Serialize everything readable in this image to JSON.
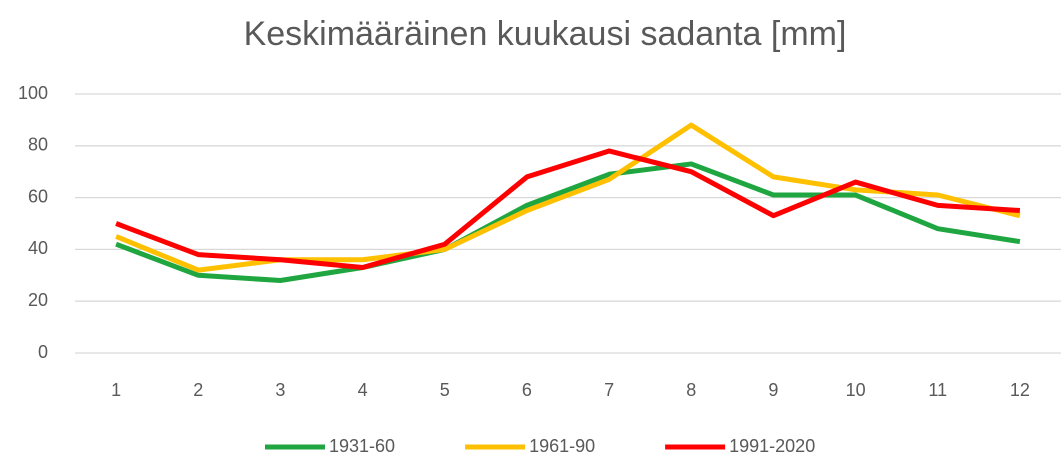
{
  "chart_data": {
    "type": "line",
    "title": "Keskimääräinen kuukausi sadanta [mm]",
    "categories": [
      1,
      2,
      3,
      4,
      5,
      6,
      7,
      8,
      9,
      10,
      11,
      12
    ],
    "series": [
      {
        "name": "1931-60",
        "color": "#1fa640",
        "values": [
          42,
          30,
          28,
          33,
          40,
          57,
          69,
          73,
          61,
          61,
          48,
          43
        ]
      },
      {
        "name": "1961-90",
        "color": "#ffc000",
        "values": [
          45,
          32,
          36,
          36,
          40,
          55,
          67,
          88,
          68,
          63,
          61,
          53
        ]
      },
      {
        "name": "1991-2020",
        "color": "#ff0000",
        "values": [
          50,
          38,
          36,
          33,
          42,
          68,
          78,
          70,
          53,
          66,
          57,
          55
        ]
      }
    ],
    "ylim": [
      0,
      100
    ],
    "yticks": [
      0,
      20,
      40,
      60,
      80,
      100
    ],
    "grid": true,
    "legend": "bottom"
  }
}
